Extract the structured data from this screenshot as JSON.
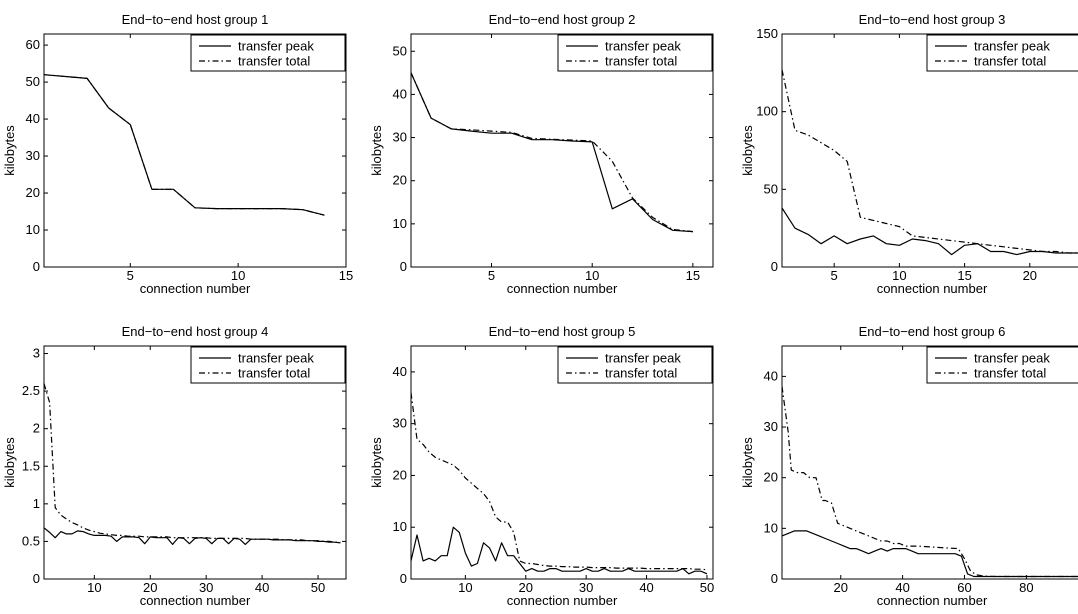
{
  "chart_data": [
    {
      "type": "line",
      "title": "End−to−end host group 1",
      "xlabel": "connection number",
      "ylabel": "kilobytes",
      "xlim": [
        1,
        15
      ],
      "ylim": [
        0,
        63
      ],
      "xticks": [
        5,
        10,
        15
      ],
      "yticks": [
        0,
        10,
        20,
        30,
        40,
        50,
        60
      ],
      "grid": false,
      "legend_position": "top-right",
      "series": [
        {
          "name": "transfer peak",
          "style": "solid",
          "x": [
            1,
            2,
            3,
            4,
            5,
            6,
            7,
            8,
            9,
            10,
            11,
            12,
            13,
            14
          ],
          "y": [
            52,
            51.5,
            51,
            43,
            38.5,
            21,
            21,
            16,
            15.8,
            15.8,
            15.8,
            15.8,
            15.5,
            14
          ]
        },
        {
          "name": "transfer total",
          "style": "dashdot",
          "x": [
            1,
            2,
            3,
            4,
            5,
            6,
            7,
            8,
            9,
            10,
            11,
            12,
            13,
            14
          ],
          "y": [
            52,
            51.5,
            51,
            43,
            38.5,
            21,
            21,
            16,
            15.8,
            15.8,
            15.8,
            15.8,
            15.5,
            14
          ]
        }
      ]
    },
    {
      "type": "line",
      "title": "End−to−end host group 2",
      "xlabel": "connection number",
      "ylabel": "kilobytes",
      "xlim": [
        1,
        16
      ],
      "ylim": [
        0,
        54
      ],
      "xticks": [
        5,
        10,
        15
      ],
      "yticks": [
        0,
        10,
        20,
        30,
        40,
        50
      ],
      "grid": false,
      "legend_position": "top-right",
      "series": [
        {
          "name": "transfer peak",
          "style": "solid",
          "x": [
            1,
            2,
            3,
            4,
            5,
            6,
            7,
            8,
            9,
            10,
            11,
            12,
            13,
            14,
            15
          ],
          "y": [
            45,
            34.5,
            32,
            31.5,
            31,
            31,
            29.5,
            29.5,
            29.2,
            29,
            13.5,
            15.8,
            11,
            8.5,
            8.2
          ]
        },
        {
          "name": "transfer total",
          "style": "dashdot",
          "x": [
            1,
            2,
            3,
            4,
            5,
            6,
            7,
            8,
            9,
            10,
            11,
            12,
            13,
            14,
            15
          ],
          "y": [
            45,
            34.5,
            32,
            31.8,
            31.5,
            31.2,
            29.8,
            29.6,
            29.4,
            29.2,
            24.5,
            16,
            11.5,
            8.7,
            8.2
          ]
        }
      ]
    },
    {
      "type": "line",
      "title": "End−to−end host group 3",
      "xlabel": "connection number",
      "ylabel": "kilobytes",
      "xlim": [
        1,
        24
      ],
      "ylim": [
        0,
        150
      ],
      "xticks": [
        5,
        10,
        15,
        20
      ],
      "yticks": [
        0,
        50,
        100,
        150
      ],
      "grid": false,
      "legend_position": "top-right",
      "series": [
        {
          "name": "transfer peak",
          "style": "solid",
          "x": [
            1,
            2,
            3,
            4,
            5,
            6,
            7,
            8,
            9,
            10,
            11,
            12,
            13,
            14,
            15,
            16,
            17,
            18,
            19,
            20,
            21,
            22,
            23,
            24
          ],
          "y": [
            38,
            25,
            21,
            15,
            20,
            15,
            18,
            20,
            15,
            14,
            18,
            17,
            15,
            8,
            14,
            15,
            10,
            10,
            8,
            10,
            10,
            9,
            9,
            9
          ]
        },
        {
          "name": "transfer total",
          "style": "dashdot",
          "x": [
            1,
            2,
            3,
            4,
            5,
            6,
            7,
            8,
            9,
            10,
            11,
            12,
            13,
            14,
            15,
            16,
            17,
            18,
            19,
            20,
            21,
            22,
            23,
            24
          ],
          "y": [
            127,
            88,
            85,
            80,
            75,
            68,
            32,
            30,
            28,
            26,
            20,
            19,
            18,
            17,
            16,
            15,
            14,
            13,
            12,
            11,
            10,
            10,
            9,
            9
          ]
        }
      ]
    },
    {
      "type": "line",
      "title": "End−to−end host group 4",
      "xlabel": "connection number",
      "ylabel": "kilobytes",
      "xlim": [
        1,
        55
      ],
      "ylim": [
        0,
        3.1
      ],
      "xticks": [
        10,
        20,
        30,
        40,
        50
      ],
      "yticks": [
        0,
        0.5,
        1,
        1.5,
        2,
        2.5,
        3
      ],
      "grid": false,
      "legend_position": "top-right",
      "series": [
        {
          "name": "transfer peak",
          "style": "solid",
          "x": [
            1,
            2,
            3,
            4,
            5,
            6,
            7,
            8,
            9,
            10,
            11,
            12,
            13,
            14,
            15,
            16,
            17,
            18,
            19,
            20,
            21,
            22,
            23,
            24,
            25,
            26,
            27,
            28,
            29,
            30,
            31,
            32,
            33,
            34,
            35,
            36,
            37,
            38,
            39,
            40,
            41,
            42,
            43,
            44,
            45,
            46,
            47,
            48,
            49,
            50,
            51,
            52,
            53,
            54
          ],
          "y": [
            0.68,
            0.62,
            0.55,
            0.63,
            0.6,
            0.6,
            0.64,
            0.63,
            0.6,
            0.58,
            0.58,
            0.58,
            0.57,
            0.5,
            0.56,
            0.56,
            0.56,
            0.55,
            0.47,
            0.56,
            0.55,
            0.55,
            0.55,
            0.46,
            0.55,
            0.54,
            0.47,
            0.54,
            0.55,
            0.54,
            0.47,
            0.54,
            0.54,
            0.47,
            0.54,
            0.53,
            0.46,
            0.53,
            0.53,
            0.53,
            0.53,
            0.52,
            0.52,
            0.52,
            0.52,
            0.51,
            0.51,
            0.51,
            0.51,
            0.5,
            0.5,
            0.49,
            0.49,
            0.48
          ]
        },
        {
          "name": "transfer total",
          "style": "dashdot",
          "x": [
            1,
            2,
            3,
            4,
            5,
            6,
            7,
            8,
            9,
            10,
            11,
            12,
            13,
            14,
            15,
            16,
            17,
            18,
            19,
            20,
            21,
            22,
            23,
            24,
            25,
            26,
            27,
            28,
            29,
            30,
            31,
            32,
            33,
            34,
            35,
            36,
            37,
            38,
            39,
            40,
            41,
            42,
            43,
            44,
            45,
            46,
            47,
            48,
            49,
            50,
            51,
            52,
            53,
            54
          ],
          "y": [
            2.6,
            2.35,
            0.95,
            0.85,
            0.8,
            0.75,
            0.72,
            0.68,
            0.65,
            0.63,
            0.61,
            0.6,
            0.59,
            0.58,
            0.58,
            0.57,
            0.57,
            0.57,
            0.56,
            0.56,
            0.56,
            0.56,
            0.56,
            0.55,
            0.55,
            0.55,
            0.55,
            0.55,
            0.55,
            0.55,
            0.54,
            0.54,
            0.54,
            0.54,
            0.54,
            0.54,
            0.54,
            0.53,
            0.53,
            0.53,
            0.53,
            0.53,
            0.53,
            0.52,
            0.52,
            0.52,
            0.52,
            0.51,
            0.51,
            0.51,
            0.5,
            0.5,
            0.49,
            0.49
          ]
        }
      ]
    },
    {
      "type": "line",
      "title": "End−to−end host group 5",
      "xlabel": "connection number",
      "ylabel": "kilobytes",
      "xlim": [
        1,
        51
      ],
      "ylim": [
        0,
        45
      ],
      "xticks": [
        10,
        20,
        30,
        40,
        50
      ],
      "yticks": [
        0,
        10,
        20,
        30,
        40
      ],
      "grid": false,
      "legend_position": "top-right",
      "series": [
        {
          "name": "transfer peak",
          "style": "solid",
          "x": [
            1,
            2,
            3,
            4,
            5,
            6,
            7,
            8,
            9,
            10,
            11,
            12,
            13,
            14,
            15,
            16,
            17,
            18,
            19,
            20,
            21,
            22,
            23,
            24,
            25,
            26,
            27,
            28,
            29,
            30,
            31,
            32,
            33,
            34,
            35,
            36,
            37,
            38,
            39,
            40,
            41,
            42,
            43,
            44,
            45,
            46,
            47,
            48,
            49,
            50
          ],
          "y": [
            3.5,
            8.5,
            3.5,
            4,
            3.5,
            4.5,
            4.5,
            10,
            9,
            5,
            2.5,
            3,
            7,
            6,
            3.5,
            7,
            4.5,
            4.5,
            3,
            1.5,
            2,
            1.5,
            1.5,
            2,
            2,
            1.5,
            1.5,
            1.5,
            1.5,
            2,
            1.5,
            1.5,
            2,
            1.5,
            1.5,
            1.5,
            2,
            1.5,
            1.5,
            1.5,
            1.5,
            1.5,
            1.5,
            1.5,
            1.5,
            2,
            1,
            1.5,
            1.5,
            1
          ]
        },
        {
          "name": "transfer total",
          "style": "dashdot",
          "x": [
            1,
            2,
            3,
            4,
            5,
            6,
            7,
            8,
            9,
            10,
            11,
            12,
            13,
            14,
            15,
            16,
            17,
            18,
            19,
            20,
            21,
            22,
            23,
            24,
            25,
            26,
            27,
            28,
            29,
            30,
            31,
            32,
            33,
            34,
            35,
            36,
            37,
            38,
            39,
            40,
            41,
            42,
            43,
            44,
            45,
            46,
            47,
            48,
            49,
            50
          ],
          "y": [
            36,
            27,
            26,
            24.5,
            23.5,
            23,
            22.5,
            22,
            21,
            19.5,
            18.5,
            17.5,
            16.5,
            15,
            12,
            11,
            11,
            9,
            3.5,
            3,
            3,
            2.8,
            2.6,
            2.5,
            2.5,
            2.4,
            2.4,
            2.3,
            2.3,
            2.3,
            2.2,
            2.2,
            2.2,
            2.2,
            2.1,
            2.1,
            2.1,
            2.1,
            2.1,
            2,
            2,
            2,
            2,
            2,
            2,
            2,
            2,
            1.9,
            1.9,
            1.8
          ]
        }
      ]
    },
    {
      "type": "line",
      "title": "End−to−end host group 6",
      "xlabel": "connection number",
      "ylabel": "kilobytes",
      "xlim": [
        1,
        98
      ],
      "ylim": [
        0,
        46
      ],
      "xticks": [
        20,
        40,
        60,
        80
      ],
      "yticks": [
        0,
        10,
        20,
        30,
        40
      ],
      "grid": false,
      "legend_position": "top-right",
      "series": [
        {
          "name": "transfer peak",
          "style": "solid",
          "x": [
            1,
            3,
            5,
            7,
            9,
            11,
            13,
            15,
            17,
            19,
            21,
            23,
            25,
            27,
            29,
            31,
            33,
            35,
            37,
            39,
            41,
            43,
            45,
            47,
            49,
            51,
            53,
            55,
            57,
            59,
            61,
            63,
            65,
            67,
            70,
            75,
            80,
            85,
            90,
            95,
            98
          ],
          "y": [
            8.5,
            9,
            9.5,
            9.5,
            9.5,
            9,
            8.5,
            8,
            7.5,
            7,
            6.5,
            6,
            6,
            5.5,
            5,
            5.5,
            6,
            5.5,
            6,
            6,
            6,
            5.5,
            5,
            5,
            5,
            5,
            5,
            5,
            5,
            4.5,
            1,
            0.5,
            0.5,
            0.5,
            0.5,
            0.5,
            0.5,
            0.5,
            0.5,
            0.5,
            0.5
          ]
        },
        {
          "name": "transfer total",
          "style": "dashdot",
          "x": [
            1,
            3,
            4,
            6,
            8,
            10,
            12,
            14,
            15,
            17,
            19,
            21,
            23,
            25,
            27,
            29,
            31,
            33,
            35,
            37,
            39,
            41,
            45,
            50,
            55,
            58,
            60,
            62,
            64,
            66,
            70,
            75,
            80,
            85,
            90,
            95,
            98
          ],
          "y": [
            38,
            29,
            21.5,
            21,
            21,
            20,
            20,
            15.5,
            15.5,
            15,
            11,
            10.5,
            10,
            9.5,
            9,
            8.5,
            8,
            7.5,
            7.5,
            7,
            7,
            6.5,
            6.5,
            6.3,
            6.1,
            6,
            4,
            1.5,
            0.8,
            0.6,
            0.5,
            0.5,
            0.5,
            0.5,
            0.5,
            0.5,
            0.5
          ]
        }
      ]
    }
  ]
}
